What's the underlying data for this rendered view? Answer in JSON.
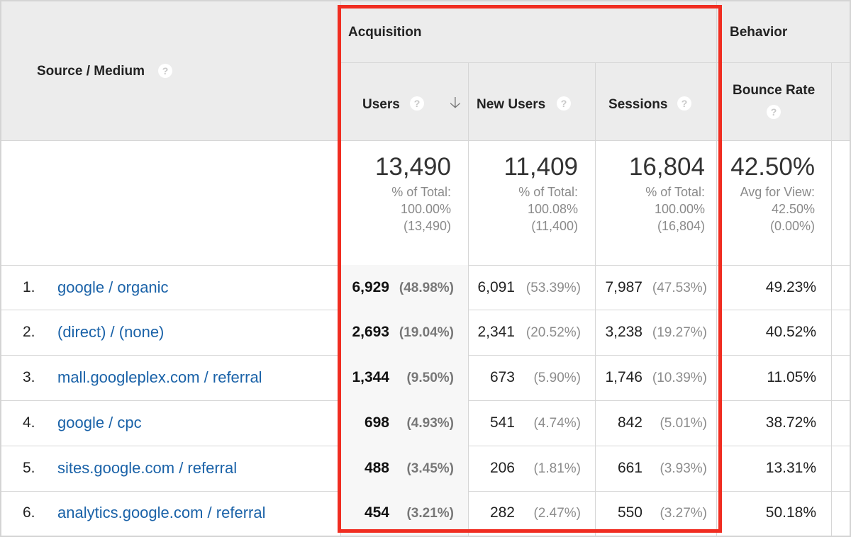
{
  "header": {
    "source_medium": "Source / Medium",
    "acquisition": "Acquisition",
    "behavior": "Behavior",
    "users": "Users",
    "new_users": "New Users",
    "sessions": "Sessions",
    "bounce_rate": "Bounce Rate",
    "help_glyph": "?",
    "sort_glyph": "🡣",
    "sort_direction": "descending"
  },
  "totals": {
    "users": {
      "value": "13,490",
      "line1": "% of Total:",
      "line2": "100.00%",
      "line3": "(13,490)"
    },
    "new_users": {
      "value": "11,409",
      "line1": "% of Total:",
      "line2": "100.08%",
      "line3": "(11,400)"
    },
    "sessions": {
      "value": "16,804",
      "line1": "% of Total:",
      "line2": "100.00%",
      "line3": "(16,804)"
    },
    "bounce_rate": {
      "value": "42.50%",
      "line1": "Avg for View:",
      "line2": "42.50%",
      "line3": "(0.00%)"
    }
  },
  "rows": [
    {
      "num": "1.",
      "source": "google / organic",
      "users": "6,929",
      "users_pct": "(48.98%)",
      "new_users": "6,091",
      "new_users_pct": "(53.39%)",
      "sessions": "7,987",
      "sessions_pct": "(47.53%)",
      "bounce_rate": "49.23%"
    },
    {
      "num": "2.",
      "source": "(direct) / (none)",
      "users": "2,693",
      "users_pct": "(19.04%)",
      "new_users": "2,341",
      "new_users_pct": "(20.52%)",
      "sessions": "3,238",
      "sessions_pct": "(19.27%)",
      "bounce_rate": "40.52%"
    },
    {
      "num": "3.",
      "source": "mall.googleplex.com / referral",
      "users": "1,344",
      "users_pct": "(9.50%)",
      "new_users": "673",
      "new_users_pct": "(5.90%)",
      "sessions": "1,746",
      "sessions_pct": "(10.39%)",
      "bounce_rate": "11.05%"
    },
    {
      "num": "4.",
      "source": "google / cpc",
      "users": "698",
      "users_pct": "(4.93%)",
      "new_users": "541",
      "new_users_pct": "(4.74%)",
      "sessions": "842",
      "sessions_pct": "(5.01%)",
      "bounce_rate": "38.72%"
    },
    {
      "num": "5.",
      "source": "sites.google.com / referral",
      "users": "488",
      "users_pct": "(3.45%)",
      "new_users": "206",
      "new_users_pct": "(1.81%)",
      "sessions": "661",
      "sessions_pct": "(3.93%)",
      "bounce_rate": "13.31%"
    },
    {
      "num": "6.",
      "source": "analytics.google.com / referral",
      "users": "454",
      "users_pct": "(3.21%)",
      "new_users": "282",
      "new_users_pct": "(2.47%)",
      "sessions": "550",
      "sessions_pct": "(3.27%)",
      "bounce_rate": "50.18%"
    }
  ],
  "colors": {
    "header_bg": "#ececec",
    "link": "#1a62a8",
    "highlight_border": "#f02d21",
    "muted_text": "#8c8c8c",
    "grid_line": "#d6d6d6"
  }
}
